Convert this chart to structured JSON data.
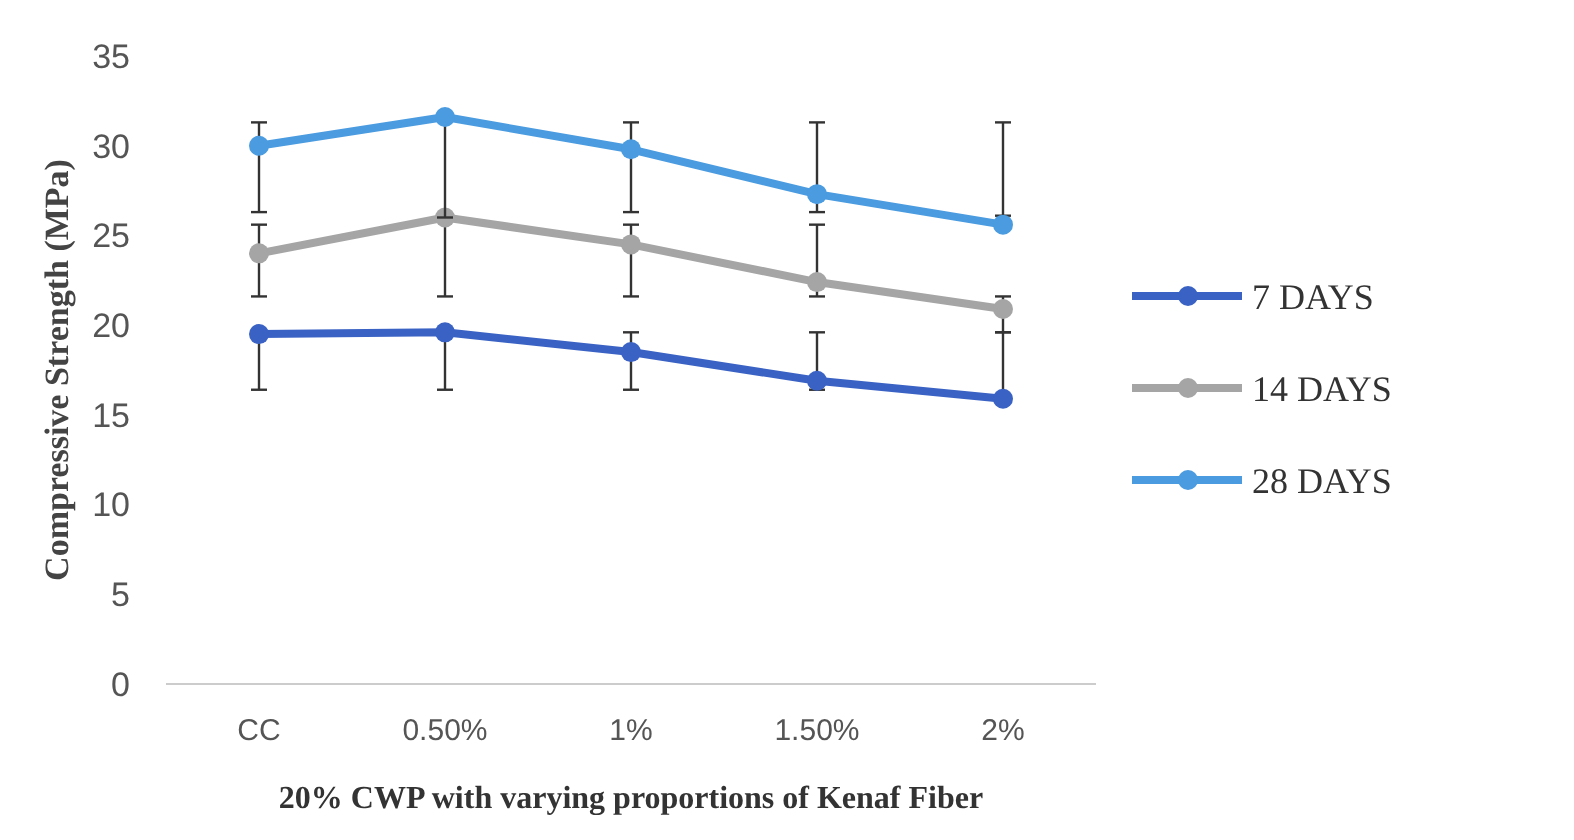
{
  "chart_data": {
    "type": "line",
    "xlabel": "20% CWP with varying proportions of Kenaf Fiber",
    "ylabel": "Compressive Strength (MPa)",
    "categories": [
      "CC",
      "0.50%",
      "1%",
      "1.50%",
      "2%"
    ],
    "ylim": [
      0,
      35
    ],
    "yticks": [
      0,
      5,
      10,
      15,
      20,
      25,
      30,
      35
    ],
    "grid": false,
    "legend": "right",
    "marker": "circle",
    "series": [
      {
        "name": "7 DAYS",
        "color": "#3a62c4",
        "values": [
          19.5,
          19.6,
          18.5,
          16.9,
          15.9
        ],
        "errors": [
          [
            16.4,
            19.5
          ],
          [
            16.4,
            19.6
          ],
          [
            16.4,
            19.6
          ],
          [
            16.4,
            19.6
          ],
          [
            15.9,
            19.6
          ]
        ]
      },
      {
        "name": "14 DAYS",
        "color": "#a5a5a5",
        "values": [
          24,
          26,
          24.5,
          22.4,
          20.9
        ],
        "errors": [
          [
            21.6,
            25.6
          ],
          [
            21.6,
            26
          ],
          [
            21.6,
            25.6
          ],
          [
            21.6,
            25.6
          ],
          [
            19.6,
            21.6
          ]
        ]
      },
      {
        "name": "28 DAYS",
        "color": "#4a9be0",
        "values": [
          30,
          31.6,
          29.8,
          27.3,
          25.6
        ],
        "errors": [
          [
            26.3,
            31.3
          ],
          [
            26,
            31.6
          ],
          [
            26.3,
            31.3
          ],
          [
            26.3,
            31.3
          ],
          [
            26.1,
            31.3
          ]
        ]
      }
    ]
  }
}
